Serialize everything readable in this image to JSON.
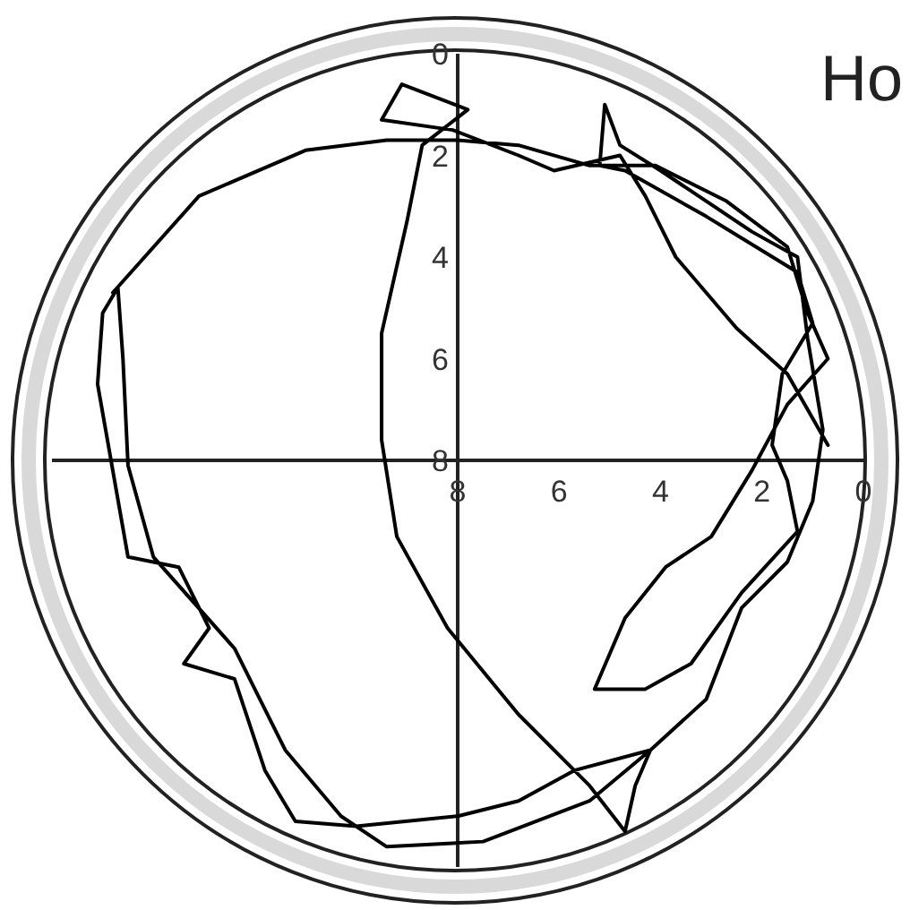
{
  "chart_data": {
    "type": "line",
    "title": "Ho",
    "xlim": [
      16,
      0
    ],
    "ylim": [
      16,
      0
    ],
    "xticks": [
      8,
      6,
      4,
      2,
      0
    ],
    "yticks": [
      0,
      2,
      4,
      6,
      8
    ],
    "grid": false,
    "series": [
      {
        "color": "#000000",
        "x": [
          14.8,
          13.1,
          11.0,
          9.4,
          8.0,
          6.8,
          5.4,
          4.1,
          2.7,
          1.5,
          1.1,
          0.7,
          1.5,
          2.2,
          3.0,
          3.9,
          4.7,
          5.3,
          4.3,
          3.4,
          2.4,
          1.3,
          1.5,
          1.8,
          1.6,
          1.0,
          1.3,
          3.1,
          4.7,
          5.2,
          5.1,
          4.8,
          4.0,
          2.2,
          1.3,
          1.1,
          0.8,
          1.0,
          1.5,
          2.4,
          3.1,
          4.2,
          5.7,
          6.8,
          8.0,
          10.0,
          11.2,
          11.8,
          12.4,
          13.4,
          12.9,
          13.5,
          14.5,
          14.8,
          15.1,
          15.0,
          14.7,
          14.6,
          14.5,
          14.0,
          12.4,
          11.4,
          10.3,
          9.4,
          7.5,
          5.4,
          4.2,
          4.5,
          4.7,
          5.4,
          6.8,
          8.2,
          9.2,
          9.5,
          9.5,
          9.0,
          8.7,
          7.8,
          9.1,
          9.5,
          8.1,
          6.8,
          6.1,
          4.8,
          4.3,
          3.7,
          2.5,
          1.5,
          0.7
        ],
        "values": [
          4.7,
          2.8,
          1.9,
          1.7,
          1.7,
          1.8,
          2.2,
          2.2,
          2.9,
          3.8,
          5.1,
          6.0,
          6.9,
          8.2,
          9.5,
          10.1,
          11.1,
          12.5,
          12.5,
          12.0,
          10.6,
          9.4,
          8.4,
          7.7,
          6.3,
          5.3,
          4.3,
          3.2,
          2.3,
          2.2,
          1.0,
          1.8,
          2.3,
          3.5,
          4.0,
          5.6,
          7.4,
          8.8,
          10.0,
          10.9,
          12.7,
          13.7,
          14.1,
          14.7,
          15.0,
          15.2,
          15.1,
          14.1,
          12.3,
          12.0,
          11.3,
          10.1,
          9.9,
          8.2,
          6.5,
          5.1,
          4.6,
          6.0,
          8.1,
          9.9,
          11.7,
          13.7,
          15.0,
          15.6,
          15.5,
          14.7,
          13.7,
          14.4,
          15.3,
          14.4,
          13.0,
          11.3,
          9.5,
          7.6,
          5.5,
          3.3,
          1.8,
          1.1,
          0.6,
          1.3,
          1.5,
          2.0,
          2.3,
          2.0,
          2.8,
          4.0,
          5.4,
          6.3,
          7.7
        ]
      }
    ]
  }
}
